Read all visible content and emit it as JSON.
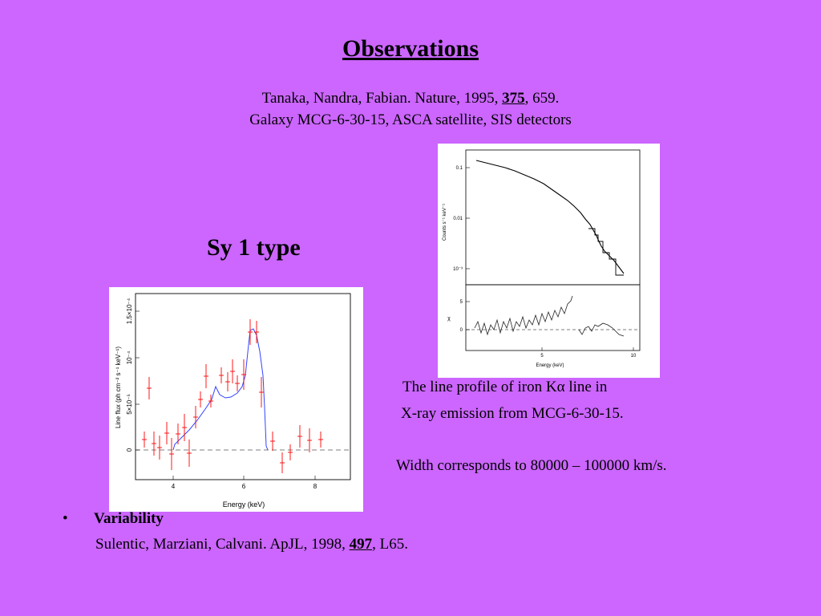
{
  "slide": {
    "title": "Observations",
    "citation1": {
      "authors": "Tanaka, Nandra, Fabian.  Nature, 1995, ",
      "volume": "375",
      "page": ", 659."
    },
    "citation2": "Galaxy MCG-6-30-15, ASCA satellite, SIS detectors",
    "sy1_label": "Sy 1 type",
    "caption_line1_a": "The line profile of iron K",
    "caption_line1_symbol": "α",
    "caption_line1_b": " line in",
    "caption_line2": "X-ray emission from MCG-6-30-15.",
    "caption_line3": "Width corresponds to 80000 – 100000 km/s.",
    "bullet": "•",
    "variability_title": "Variability",
    "variability_citation": {
      "authors": "Sulentic, Marziani, Calvani.  ApJL, 1998, ",
      "volume": "497",
      "page": ", L65."
    }
  },
  "figures": {
    "spectrum": {
      "top_ticks": [
        "0.1",
        "0.01",
        "10⁻³"
      ],
      "ylabel": "Counts s⁻¹ keV⁻¹",
      "bottom_ticks": [
        "5",
        "0"
      ],
      "residual_label": "χ",
      "x_ticks": [
        "5",
        "10"
      ],
      "xlabel": "Energy (keV)"
    },
    "line_profile": {
      "y_ticks": [
        "0",
        "5×10⁻⁵",
        "10⁻⁴",
        "1.5×10⁻⁴"
      ],
      "ylabel": "Line flux (ph cm⁻² s⁻¹ keV⁻¹)",
      "x_ticks": [
        "4",
        "6",
        "8"
      ],
      "xlabel": "Energy (keV)"
    }
  },
  "colors": {
    "background": "#cc66ff",
    "data_points": "#ff0000",
    "model_line": "#3344ff"
  }
}
